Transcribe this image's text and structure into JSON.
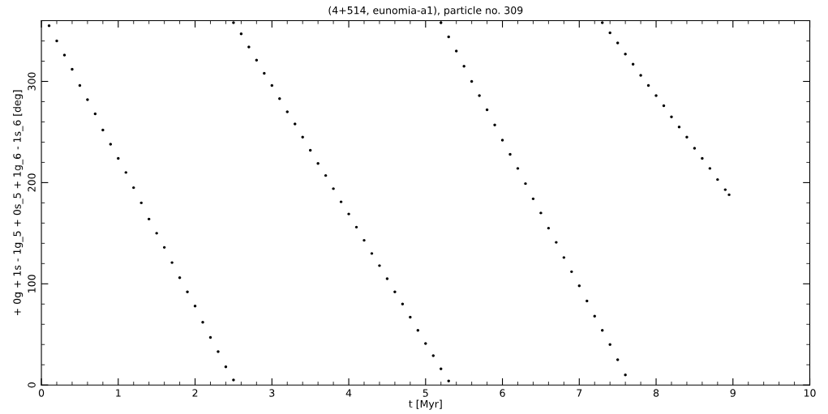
{
  "chart_data": {
    "type": "scatter",
    "title": "(4+514, eunomia-a1), particle no. 309",
    "xlabel": "t [Myr]",
    "ylabel": "+ 0g + 1s - 1g_5 + 0s_5 + 1g_6 - 1s_6 [deg]",
    "x": [
      0.1,
      0.2,
      0.3,
      0.4,
      0.5,
      0.6,
      0.7,
      0.8,
      0.9,
      1.0,
      1.1,
      1.2,
      1.3,
      1.4,
      1.5,
      1.6,
      1.7,
      1.8,
      1.9,
      2.0,
      2.1,
      2.2,
      2.3,
      2.4,
      2.5,
      2.5,
      2.6,
      2.7,
      2.8,
      2.9,
      3.0,
      3.1,
      3.2,
      3.3,
      3.4,
      3.5,
      3.6,
      3.7,
      3.8,
      3.9,
      4.0,
      4.1,
      4.2,
      4.3,
      4.4,
      4.5,
      4.6,
      4.7,
      4.8,
      4.9,
      5.0,
      5.1,
      5.2,
      5.3,
      5.2,
      5.3,
      5.4,
      5.5,
      5.6,
      5.7,
      5.8,
      5.9,
      6.0,
      6.1,
      6.2,
      6.3,
      6.4,
      6.5,
      6.6,
      6.7,
      6.8,
      6.9,
      7.0,
      7.1,
      7.2,
      7.3,
      7.4,
      7.5,
      7.6,
      7.3,
      7.4,
      7.5,
      7.6,
      7.7,
      7.8,
      7.9,
      8.0,
      8.1,
      8.2,
      8.3,
      8.4,
      8.5,
      8.6,
      8.7,
      8.8,
      8.9,
      8.95
    ],
    "values": [
      355,
      340,
      326,
      312,
      296,
      282,
      268,
      252,
      238,
      224,
      210,
      195,
      180,
      164,
      150,
      136,
      121,
      106,
      92,
      78,
      62,
      47,
      33,
      18,
      5,
      358,
      347,
      334,
      321,
      308,
      296,
      283,
      270,
      258,
      245,
      232,
      219,
      207,
      194,
      181,
      169,
      156,
      143,
      130,
      118,
      105,
      92,
      80,
      67,
      54,
      41,
      29,
      16,
      4,
      358,
      344,
      330,
      315,
      300,
      286,
      272,
      257,
      242,
      228,
      214,
      199,
      184,
      170,
      155,
      141,
      126,
      112,
      98,
      83,
      68,
      54,
      40,
      25,
      10,
      358,
      348,
      338,
      327,
      317,
      306,
      296,
      286,
      276,
      265,
      255,
      245,
      234,
      224,
      214,
      203,
      193,
      188
    ],
    "color": "#000000",
    "marker": "circle",
    "xlim": [
      0,
      10
    ],
    "xticks": [
      0,
      1,
      2,
      3,
      4,
      5,
      6,
      7,
      8,
      9,
      10
    ],
    "ylim": [
      0,
      360
    ],
    "yticks": [
      0,
      100,
      200,
      300
    ],
    "grid": false,
    "legend": false
  }
}
